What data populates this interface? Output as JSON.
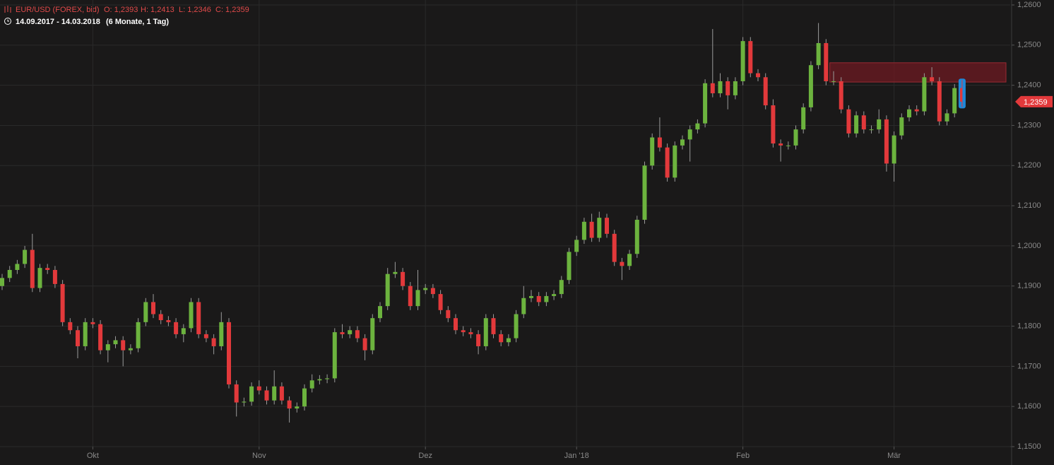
{
  "header": {
    "instrument": "EUR/USD (FOREX, bid)",
    "ohlc": [
      "O: 1,2393",
      "H: 1,2413",
      "L: 1,2346",
      "C: 1,2359"
    ],
    "range": "14.09.2017 - 14.03.2018",
    "period": "(6 Monate, 1 Tag)"
  },
  "chart_data": {
    "type": "candlestick",
    "categories": [
      null,
      null,
      null,
      null,
      null,
      null,
      null,
      null,
      null,
      null,
      null,
      null,
      "Okt",
      null,
      null,
      null,
      null,
      null,
      null,
      null,
      null,
      null,
      null,
      null,
      null,
      null,
      null,
      null,
      null,
      null,
      null,
      null,
      null,
      null,
      "Nov",
      null,
      null,
      null,
      null,
      null,
      null,
      null,
      null,
      null,
      null,
      null,
      null,
      null,
      null,
      null,
      null,
      null,
      null,
      null,
      null,
      null,
      "Dez",
      null,
      null,
      null,
      null,
      null,
      null,
      null,
      null,
      null,
      null,
      null,
      null,
      null,
      null,
      null,
      null,
      null,
      null,
      null,
      "Jan '18",
      null,
      null,
      null,
      null,
      null,
      null,
      null,
      null,
      null,
      null,
      null,
      null,
      null,
      null,
      null,
      null,
      null,
      null,
      null,
      null,
      null,
      "Feb",
      null,
      null,
      null,
      null,
      null,
      null,
      null,
      null,
      null,
      null,
      null,
      null,
      null,
      null,
      null,
      null,
      null,
      null,
      null,
      "Mär",
      null,
      null,
      null,
      null,
      null,
      null,
      null,
      null,
      null
    ],
    "open": [
      1.19,
      1.192,
      1.194,
      1.1955,
      1.199,
      1.1895,
      1.1945,
      1.194,
      1.1905,
      1.181,
      1.179,
      1.175,
      1.181,
      1.1805,
      1.174,
      1.1755,
      1.1765,
      1.174,
      1.1745,
      1.181,
      1.186,
      1.183,
      1.1815,
      1.181,
      1.178,
      1.1795,
      1.186,
      1.178,
      1.177,
      1.175,
      1.181,
      1.1655,
      1.161,
      1.1612,
      1.165,
      1.164,
      1.1615,
      1.165,
      1.1615,
      1.1595,
      1.16,
      1.1645,
      1.1665,
      1.1668,
      1.167,
      1.1785,
      1.178,
      1.179,
      1.177,
      1.174,
      1.182,
      1.185,
      1.193,
      1.1935,
      1.19,
      1.185,
      1.189,
      1.1895,
      1.188,
      1.184,
      1.182,
      1.179,
      1.1785,
      1.178,
      1.175,
      1.182,
      1.178,
      1.176,
      1.177,
      1.183,
      1.187,
      1.1875,
      1.186,
      1.1875,
      1.188,
      1.1915,
      1.1985,
      1.2015,
      1.206,
      1.202,
      1.207,
      1.203,
      1.196,
      1.195,
      1.198,
      1.2065,
      1.22,
      1.227,
      1.2245,
      1.217,
      1.225,
      1.2265,
      1.229,
      1.2305,
      1.2405,
      1.238,
      1.241,
      1.2375,
      1.241,
      1.251,
      1.243,
      1.242,
      1.235,
      1.2255,
      1.225,
      1.225,
      1.229,
      1.2345,
      1.245,
      1.2505,
      1.241,
      1.241,
      1.234,
      1.228,
      1.2325,
      1.229,
      1.229,
      1.2315,
      1.2205,
      1.2275,
      1.232,
      1.234,
      1.2335,
      1.242,
      1.241,
      1.231,
      1.233,
      1.2393
    ],
    "high": [
      1.193,
      1.195,
      1.1965,
      1.2,
      1.203,
      1.1955,
      1.1955,
      1.195,
      1.1915,
      1.182,
      1.18,
      1.182,
      1.182,
      1.1815,
      1.1765,
      1.1775,
      1.1775,
      1.1755,
      1.182,
      1.187,
      1.188,
      1.184,
      1.1825,
      1.182,
      1.1805,
      1.187,
      1.187,
      1.179,
      1.178,
      1.1835,
      1.182,
      1.1665,
      1.1622,
      1.166,
      1.1665,
      1.165,
      1.169,
      1.166,
      1.1625,
      1.161,
      1.1655,
      1.168,
      1.1678,
      1.168,
      1.1795,
      1.1805,
      1.18,
      1.18,
      1.178,
      1.183,
      1.186,
      1.1945,
      1.196,
      1.1945,
      1.191,
      1.194,
      1.1905,
      1.1905,
      1.189,
      1.185,
      1.183,
      1.18,
      1.1795,
      1.179,
      1.183,
      1.183,
      1.179,
      1.178,
      1.184,
      1.19,
      1.189,
      1.1885,
      1.1885,
      1.189,
      1.1925,
      1.1995,
      1.2025,
      1.207,
      1.208,
      1.2085,
      1.208,
      1.204,
      1.197,
      1.199,
      1.2075,
      1.221,
      1.228,
      1.232,
      1.2255,
      1.226,
      1.2275,
      1.23,
      1.2315,
      1.2415,
      1.254,
      1.243,
      1.242,
      1.242,
      1.252,
      1.252,
      1.244,
      1.243,
      1.2365,
      1.2265,
      1.226,
      1.23,
      1.2355,
      1.246,
      1.2555,
      1.2515,
      1.2435,
      1.242,
      1.235,
      1.2335,
      1.2335,
      1.23,
      1.234,
      1.2325,
      1.2285,
      1.233,
      1.235,
      1.235,
      1.243,
      1.2445,
      1.242,
      1.234,
      1.2403,
      1.2413
    ],
    "low": [
      1.189,
      1.191,
      1.193,
      1.1945,
      1.1885,
      1.1885,
      1.193,
      1.1895,
      1.18,
      1.178,
      1.172,
      1.174,
      1.1795,
      1.173,
      1.171,
      1.1745,
      1.17,
      1.173,
      1.1735,
      1.18,
      1.182,
      1.1805,
      1.18,
      1.177,
      1.176,
      1.1785,
      1.177,
      1.176,
      1.173,
      1.174,
      1.1645,
      1.1575,
      1.16,
      1.1602,
      1.163,
      1.1605,
      1.1605,
      1.1605,
      1.156,
      1.1585,
      1.159,
      1.1635,
      1.1655,
      1.1658,
      1.166,
      1.177,
      1.177,
      1.176,
      1.1715,
      1.173,
      1.181,
      1.184,
      1.192,
      1.189,
      1.184,
      1.184,
      1.188,
      1.187,
      1.183,
      1.181,
      1.178,
      1.1775,
      1.177,
      1.173,
      1.174,
      1.177,
      1.175,
      1.175,
      1.176,
      1.182,
      1.186,
      1.185,
      1.185,
      1.1865,
      1.187,
      1.1905,
      1.1975,
      1.2005,
      1.201,
      1.201,
      1.202,
      1.195,
      1.1915,
      1.194,
      1.197,
      1.2055,
      1.219,
      1.2235,
      1.216,
      1.216,
      1.224,
      1.221,
      1.228,
      1.2295,
      1.237,
      1.237,
      1.234,
      1.2365,
      1.24,
      1.242,
      1.241,
      1.234,
      1.2245,
      1.221,
      1.224,
      1.224,
      1.228,
      1.2335,
      1.244,
      1.24,
      1.24,
      1.233,
      1.227,
      1.227,
      1.228,
      1.228,
      1.228,
      1.2185,
      1.216,
      1.2265,
      1.231,
      1.2325,
      1.2325,
      1.24,
      1.23,
      1.23,
      1.232,
      1.2346
    ],
    "close": [
      1.192,
      1.194,
      1.1955,
      1.199,
      1.1895,
      1.1945,
      1.194,
      1.1905,
      1.181,
      1.179,
      1.175,
      1.181,
      1.1805,
      1.174,
      1.1755,
      1.1765,
      1.174,
      1.1745,
      1.181,
      1.186,
      1.183,
      1.1815,
      1.181,
      1.178,
      1.1795,
      1.186,
      1.178,
      1.177,
      1.175,
      1.181,
      1.1655,
      1.161,
      1.1612,
      1.165,
      1.164,
      1.1615,
      1.165,
      1.1615,
      1.1595,
      1.16,
      1.1645,
      1.1665,
      1.1668,
      1.167,
      1.1785,
      1.178,
      1.179,
      1.177,
      1.174,
      1.182,
      1.185,
      1.193,
      1.1935,
      1.19,
      1.185,
      1.189,
      1.1895,
      1.188,
      1.184,
      1.182,
      1.179,
      1.1785,
      1.178,
      1.175,
      1.182,
      1.178,
      1.176,
      1.177,
      1.183,
      1.187,
      1.1875,
      1.186,
      1.1875,
      1.188,
      1.1915,
      1.1985,
      1.2015,
      1.206,
      1.202,
      1.207,
      1.203,
      1.196,
      1.195,
      1.198,
      1.2065,
      1.22,
      1.227,
      1.2245,
      1.217,
      1.225,
      1.2265,
      1.229,
      1.2305,
      1.2405,
      1.238,
      1.241,
      1.2375,
      1.241,
      1.251,
      1.243,
      1.242,
      1.235,
      1.2255,
      1.225,
      1.225,
      1.229,
      1.2345,
      1.245,
      1.2505,
      1.241,
      1.241,
      1.234,
      1.228,
      1.2325,
      1.229,
      1.229,
      1.2315,
      1.2205,
      1.2275,
      1.232,
      1.234,
      1.2335,
      1.242,
      1.241,
      1.231,
      1.233,
      1.2393,
      1.2359
    ],
    "up_color": "#6cb33e",
    "down_color": "#e2393b",
    "ylim": [
      1.15,
      1.26
    ],
    "yticks": [
      {
        "value": 1.15,
        "label": "1,1500"
      },
      {
        "value": 1.16,
        "label": "1,1600"
      },
      {
        "value": 1.17,
        "label": "1,1700"
      },
      {
        "value": 1.18,
        "label": "1,1800"
      },
      {
        "value": 1.19,
        "label": "1,1900"
      },
      {
        "value": 1.2,
        "label": "1,2000"
      },
      {
        "value": 1.21,
        "label": "1,2100"
      },
      {
        "value": 1.22,
        "label": "1,2200"
      },
      {
        "value": 1.23,
        "label": "1,2300"
      },
      {
        "value": 1.24,
        "label": "1,2400"
      },
      {
        "value": 1.25,
        "label": "1,2500"
      },
      {
        "value": 1.26,
        "label": "1,2600"
      }
    ],
    "grid": true,
    "zone_range": [
      1.2408,
      1.2456
    ],
    "zone_start_index": 110,
    "zone_color": "#6e1a22",
    "last_label": "1,2359"
  }
}
